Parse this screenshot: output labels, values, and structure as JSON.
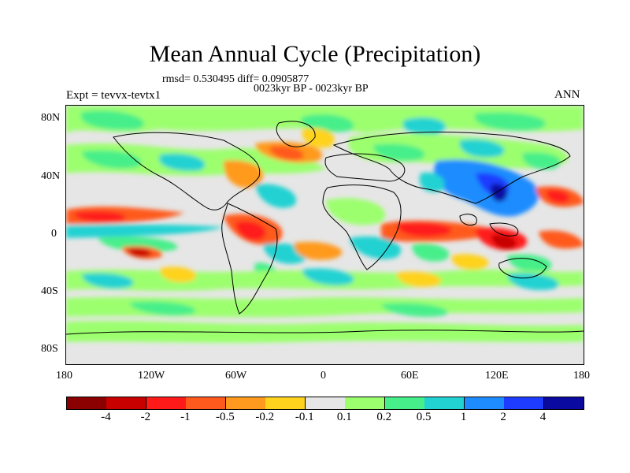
{
  "title": "Mean Annual Cycle (Precipitation)",
  "stats_line": "rmsd= 0.530495 diff= 0.0905877",
  "period_line": "0023kyr BP - 0023kyr BP",
  "experiment": "Expt = tevvx-tevtx1",
  "season": "ANN",
  "y_axis_ticks": [
    "80N",
    "40N",
    "0",
    "40S",
    "80S"
  ],
  "x_axis_ticks": [
    "180",
    "120W",
    "60W",
    "0",
    "60E",
    "120E",
    "180"
  ],
  "colorbar": {
    "colors": [
      "#8b0000",
      "#c80000",
      "#ff1a1a",
      "#ff5a1e",
      "#ff9a1e",
      "#ffd21e",
      "#e6e6e6",
      "#9cff6e",
      "#46ef8a",
      "#22d2d2",
      "#1e8cff",
      "#1e3cff",
      "#0a0aa0"
    ],
    "labels": [
      "-4",
      "-2",
      "-1",
      "-0.5",
      "-0.2",
      "-0.1",
      "0.1",
      "0.2",
      "0.5",
      "1",
      "2",
      "4"
    ]
  },
  "map": {
    "extent": {
      "lon": [
        -180,
        180
      ],
      "lat": [
        -90,
        90
      ]
    },
    "field": "precipitation difference (mean annual cycle)"
  }
}
